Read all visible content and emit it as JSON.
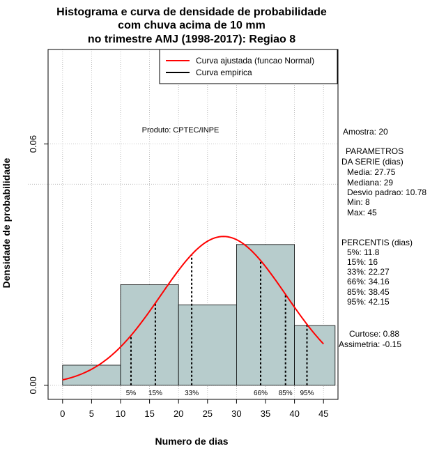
{
  "chart_data": {
    "type": "bar",
    "title": [
      "Histograma e curva de densidade de probabilidade",
      "com chuva acima de 10 mm",
      "no trimestre AMJ (1998-2017): Regiao 8"
    ],
    "xlabel": "Numero de dias",
    "ylabel": "Densidade de probabilidade",
    "xlim": [
      -2.5,
      47.5
    ],
    "ylim": [
      -0.0035,
      0.0835
    ],
    "x_ticks": [
      "0",
      "5",
      "10",
      "15",
      "20",
      "25",
      "30",
      "35",
      "40",
      "45"
    ],
    "y_ticks": [
      "0.00",
      "0.06"
    ],
    "grid": true,
    "bins": [
      {
        "from": 0,
        "to": 10,
        "density": 0.005
      },
      {
        "from": 10,
        "to": 20,
        "density": 0.025
      },
      {
        "from": 20,
        "to": 30,
        "density": 0.02
      },
      {
        "from": 30,
        "to": 40,
        "density": 0.035
      },
      {
        "from": 40,
        "to": 47,
        "density": 0.01486
      }
    ],
    "series": [
      {
        "name": "Curva ajustada (funcao Normal)",
        "color": "#ff0000",
        "distribution": "normal",
        "mean": 27.75,
        "sd": 10.78,
        "x_range": [
          0,
          45
        ]
      },
      {
        "name": "Curva empirica",
        "color": "#000000"
      }
    ],
    "percentile_lines": [
      {
        "label": "5%",
        "x": 11.8
      },
      {
        "label": "15%",
        "x": 16
      },
      {
        "label": "33%",
        "x": 22.27
      },
      {
        "label": "66%",
        "x": 34.16
      },
      {
        "label": "85%",
        "x": 38.45
      },
      {
        "label": "95%",
        "x": 42.15
      }
    ],
    "annotation": "Produto: CPTEC/INPE",
    "legend_position": "top-right",
    "colors": {
      "bars": "#b7cccc",
      "bar_edge": "#000000",
      "grid": "#b0b0b0"
    }
  },
  "side_text": {
    "amostra": "Amostra: 20",
    "params_title_1": "PARAMETROS",
    "params_title_2": "DA SERIE (dias)",
    "media": "Media: 27.75",
    "mediana": "Mediana: 29",
    "desvio": "Desvio padrao: 10.78",
    "min": "Min: 8",
    "max": "Max: 45",
    "percentis_title": "PERCENTIS (dias)",
    "p5": "5%: 11.8",
    "p15": "15%: 16",
    "p33": "33%: 22.27",
    "p66": "66%: 34.16",
    "p85": "85%: 38.45",
    "p95": "95%: 42.15",
    "curtose": "Curtose: 0.88",
    "assimetria": "Assimetria: -0.15"
  }
}
